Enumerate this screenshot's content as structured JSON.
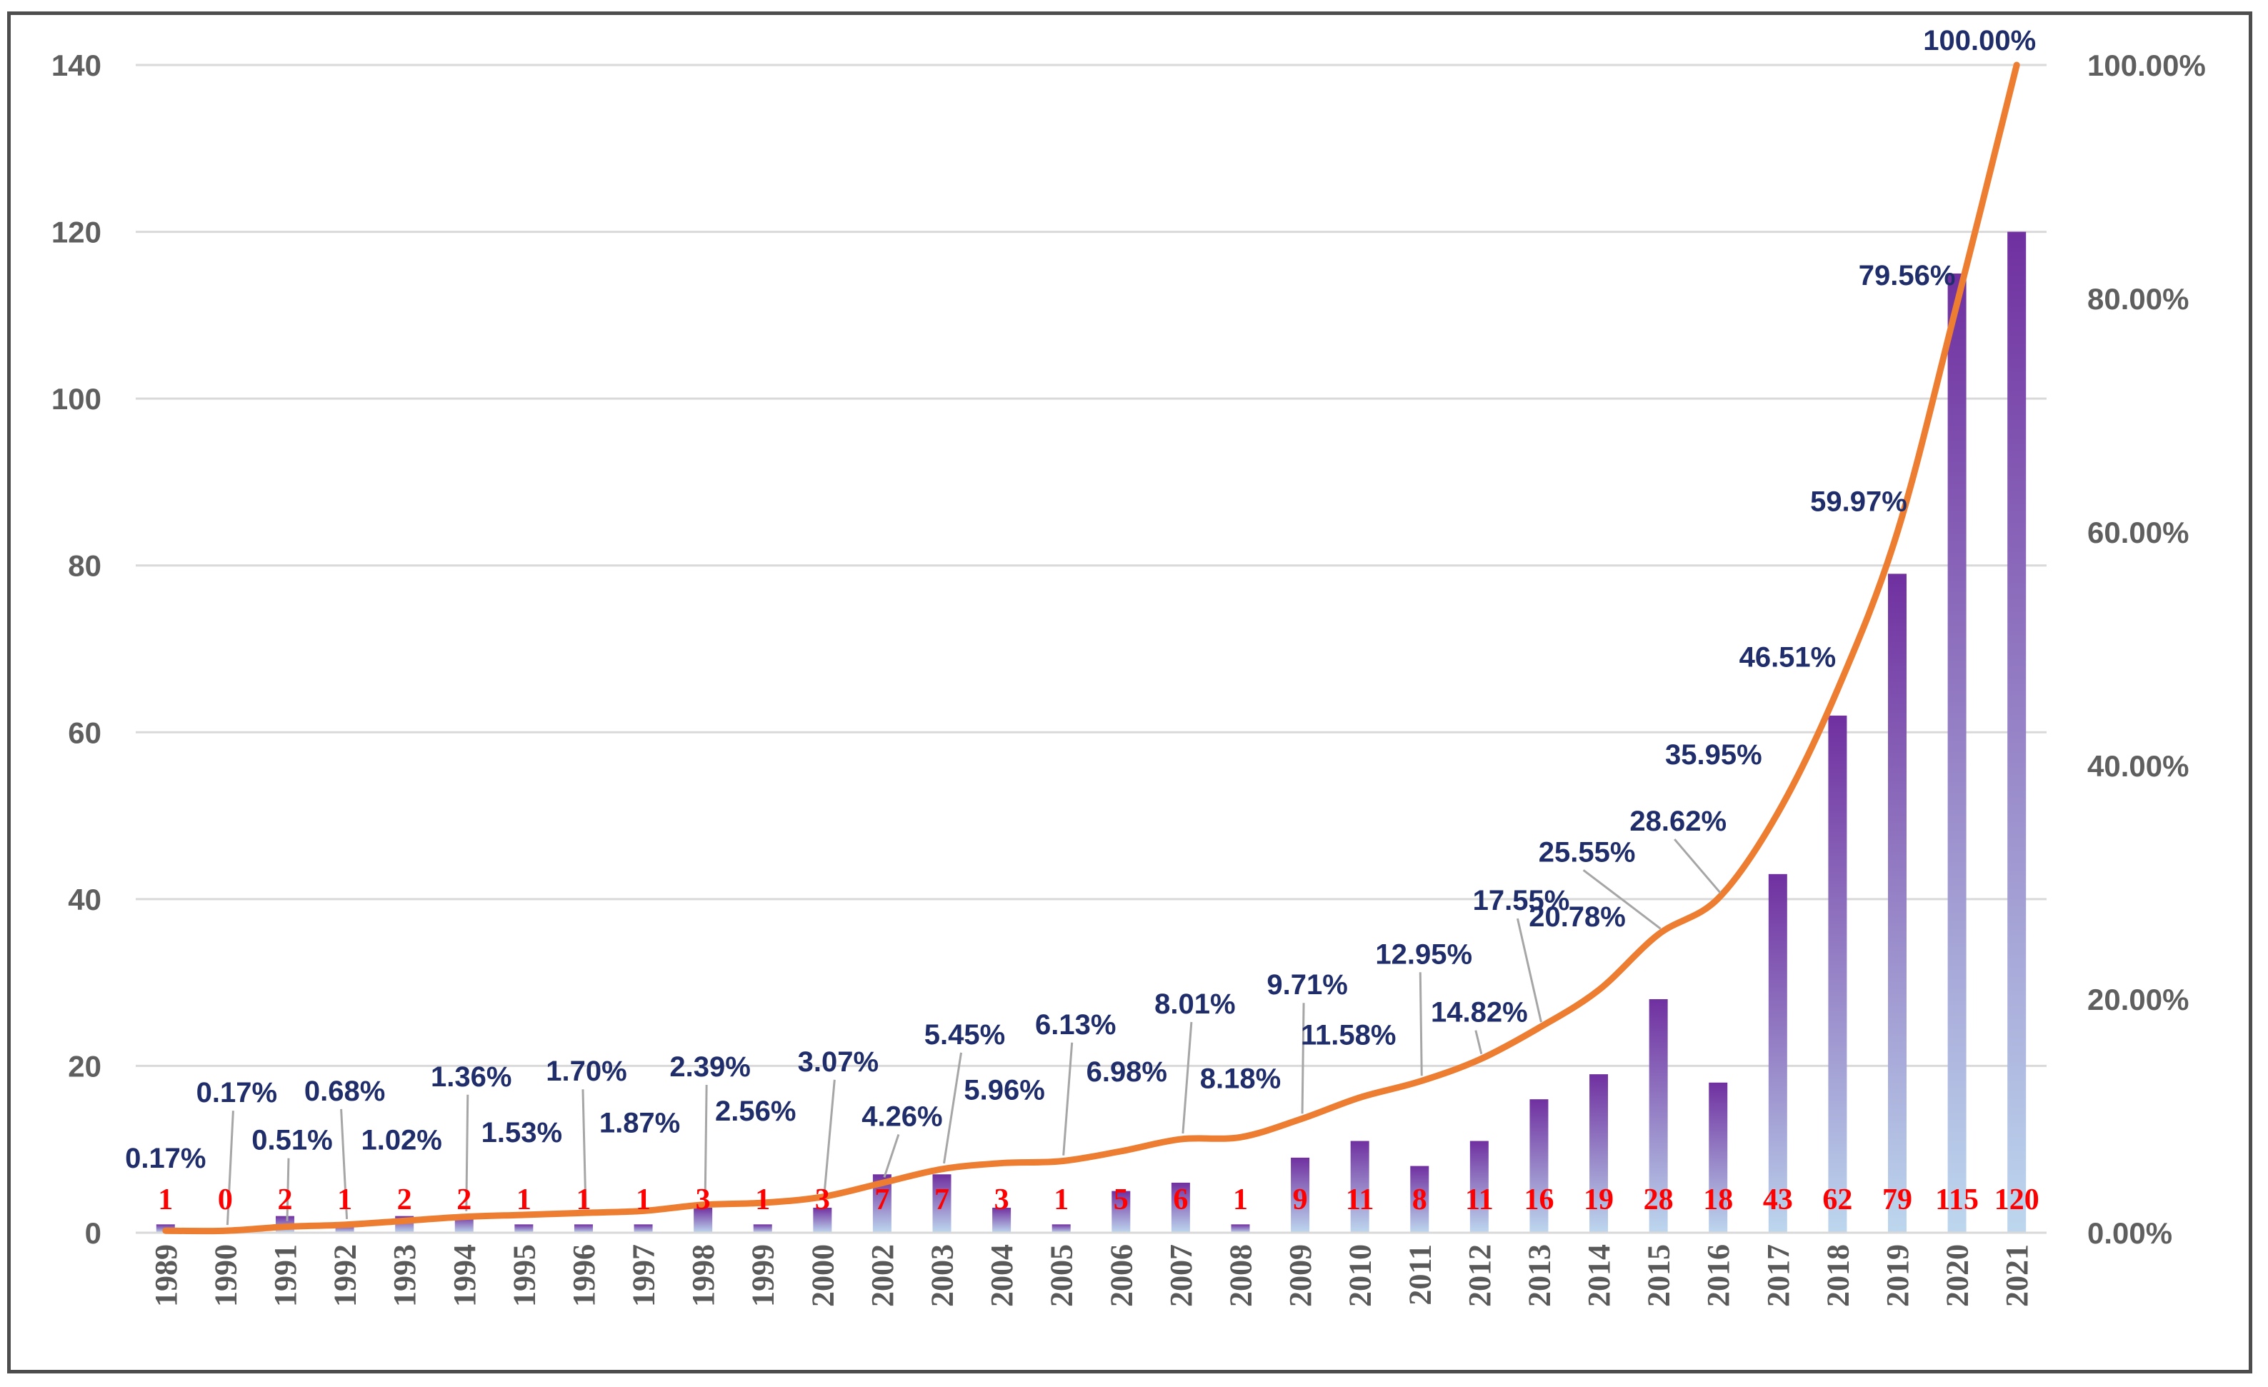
{
  "chart_data": {
    "type": "bar",
    "title": "",
    "xlabel": "",
    "ylabel": "",
    "categories": [
      "1989",
      "1990",
      "1991",
      "1992",
      "1993",
      "1994",
      "1995",
      "1996",
      "1997",
      "1998",
      "1999",
      "2000",
      "2002",
      "2003",
      "2004",
      "2005",
      "2006",
      "2007",
      "2008",
      "2009",
      "2010",
      "2011",
      "2012",
      "2013",
      "2014",
      "2015",
      "2016",
      "2017",
      "2018",
      "2019",
      "2020",
      "2021"
    ],
    "series": [
      {
        "type": "bar",
        "values": [
          1,
          0,
          2,
          1,
          2,
          2,
          1,
          1,
          1,
          3,
          1,
          3,
          7,
          7,
          3,
          1,
          5,
          6,
          1,
          9,
          11,
          8,
          11,
          16,
          19,
          28,
          18,
          43,
          62,
          79,
          115,
          120
        ],
        "data_labels": [
          "1",
          "0",
          "2",
          "1",
          "2",
          "2",
          "1",
          "1",
          "1",
          "3",
          "1",
          "3",
          "7",
          "7",
          "3",
          "1",
          "5",
          "6",
          "1",
          "9",
          "11",
          "8",
          "11",
          "16",
          "19",
          "28",
          "18",
          "43",
          "62",
          "79",
          "115",
          "120"
        ]
      },
      {
        "type": "line",
        "axis": "right",
        "values": [
          0.17,
          0.17,
          0.51,
          0.68,
          1.02,
          1.36,
          1.53,
          1.7,
          1.87,
          2.39,
          2.56,
          3.07,
          4.26,
          5.45,
          5.96,
          6.13,
          6.98,
          8.01,
          8.18,
          9.71,
          11.58,
          12.95,
          14.82,
          17.55,
          20.78,
          25.55,
          28.62,
          35.95,
          46.51,
          59.97,
          79.56,
          100.0
        ],
        "data_labels": [
          "0.17%",
          "0.17%",
          "0.51%",
          "0.68%",
          "1.02%",
          "1.36%",
          "1.53%",
          "1.70%",
          "1.87%",
          "2.39%",
          "2.56%",
          "3.07%",
          "4.26%",
          "5.45%",
          "5.96%",
          "6.13%",
          "6.98%",
          "8.01%",
          "8.18%",
          "9.71%",
          "11.58%",
          "12.95%",
          "14.82%",
          "17.55%",
          "20.78%",
          "25.55%",
          "28.62%",
          "35.95%",
          "46.51%",
          "59.97%",
          "79.56%",
          "100.00%"
        ]
      }
    ],
    "ylim": [
      0,
      140
    ],
    "yticks": [
      "0",
      "20",
      "40",
      "60",
      "80",
      "100",
      "120",
      "140"
    ],
    "y2lim": [
      0,
      100
    ],
    "y2ticks": [
      "0.00%",
      "20.00%",
      "40.00%",
      "60.00%",
      "80.00%",
      "100.00%"
    ],
    "grid": true,
    "legend": "none",
    "colors": {
      "bar_top": "#7030a0",
      "bar_bottom": "#bdd7ee",
      "line": "#ed7d31",
      "count_label": "#ff0000",
      "pct_label": "#1f2d6b",
      "leader": "#a6a6a6",
      "grid": "#d9d9d9"
    }
  }
}
